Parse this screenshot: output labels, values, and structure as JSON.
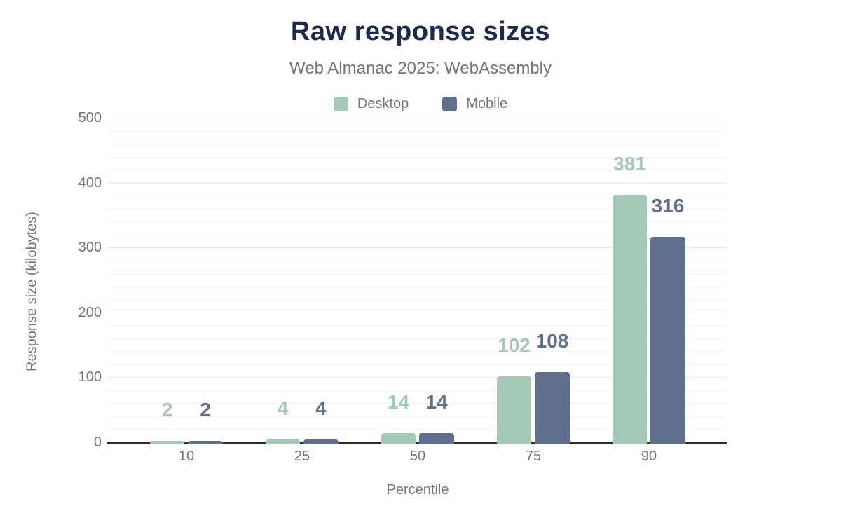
{
  "chart_data": {
    "type": "bar",
    "title": "Raw response sizes",
    "subtitle": "Web Almanac 2025: WebAssembly",
    "categories": [
      "10",
      "25",
      "50",
      "75",
      "90"
    ],
    "series": [
      {
        "name": "Desktop",
        "color": "#a4c9b7",
        "values": [
          2,
          4,
          14,
          102,
          381
        ]
      },
      {
        "name": "Mobile",
        "color": "#60708c",
        "values": [
          2,
          4,
          14,
          108,
          316
        ]
      }
    ],
    "xlabel": "Percentile",
    "ylabel": "Response size (kilobytes)",
    "ylim": [
      0,
      500
    ],
    "y_ticks": [
      0,
      100,
      200,
      300,
      400,
      500
    ],
    "y_minor_step": 20,
    "grid": "horizontal-only",
    "legend_position": "top",
    "value_labels_shown": true
  },
  "style": {
    "title_color": "#1b2a4e",
    "subtitle_color": "#757575",
    "axis_text_color": "#757575",
    "axis_line_color": "#2d2d2d",
    "grid_major_color": "#e7e7e7",
    "grid_minor_color": "#f4f4f4",
    "background_color": "#ffffff"
  }
}
